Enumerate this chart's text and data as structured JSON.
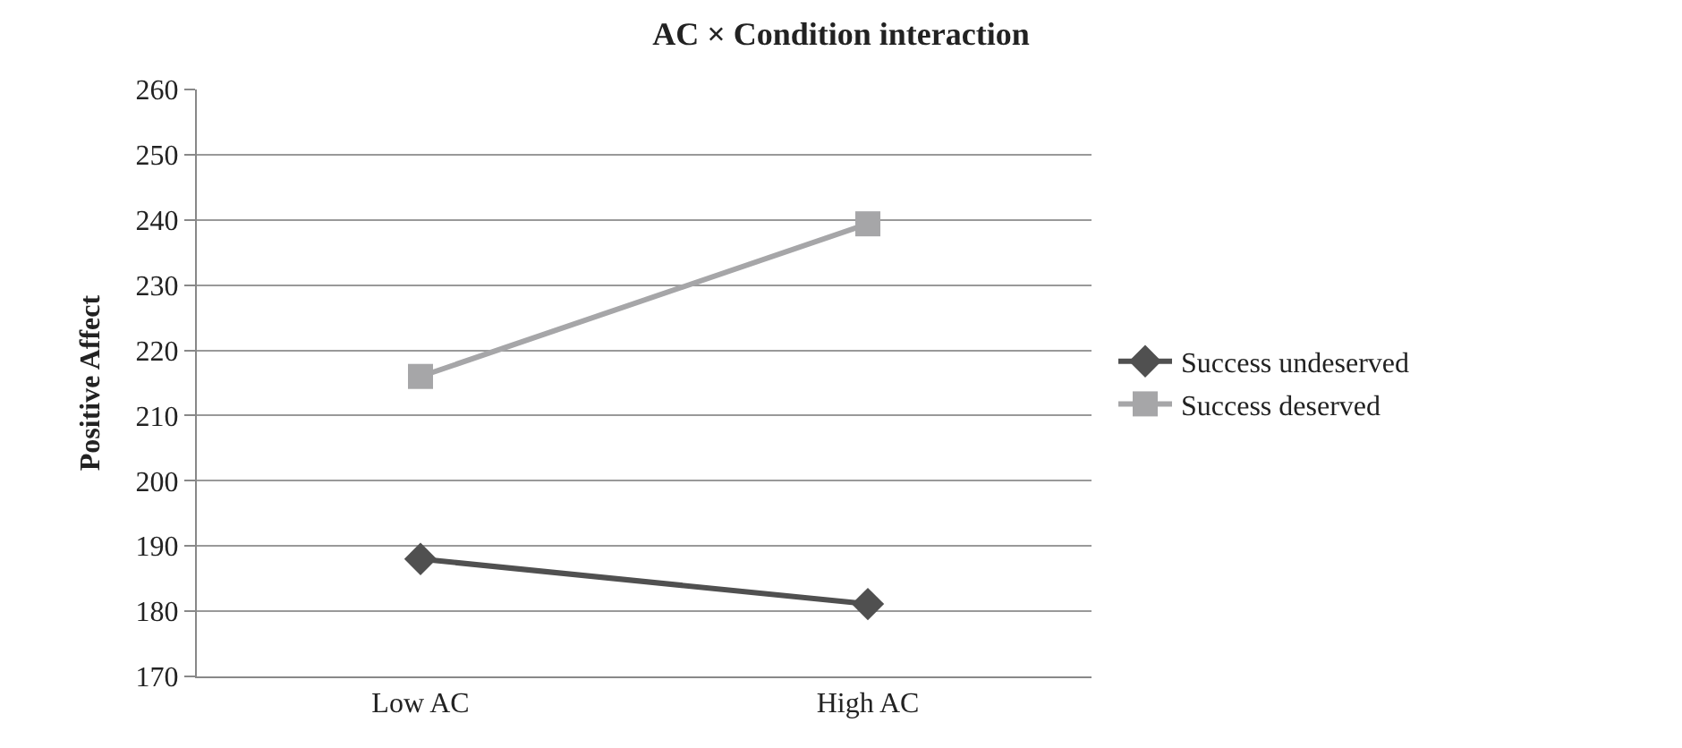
{
  "chart_data": {
    "type": "line",
    "title": "AC × Condition interaction",
    "ylabel": "Positive Affect",
    "categories": [
      "Low AC",
      "High AC"
    ],
    "series": [
      {
        "name": "Success undeserved",
        "color": "#505050",
        "values": [
          188,
          181.1
        ],
        "marker": "diamond"
      },
      {
        "name": "Success deserved",
        "color": "#a6a6a8",
        "values": [
          216,
          239.4
        ],
        "marker": "square"
      }
    ],
    "ylim": [
      170,
      260
    ],
    "yticks": [
      170,
      180,
      190,
      200,
      210,
      220,
      230,
      240,
      250,
      260
    ],
    "grid": "y",
    "legend": "right",
    "line_style": "solid"
  }
}
